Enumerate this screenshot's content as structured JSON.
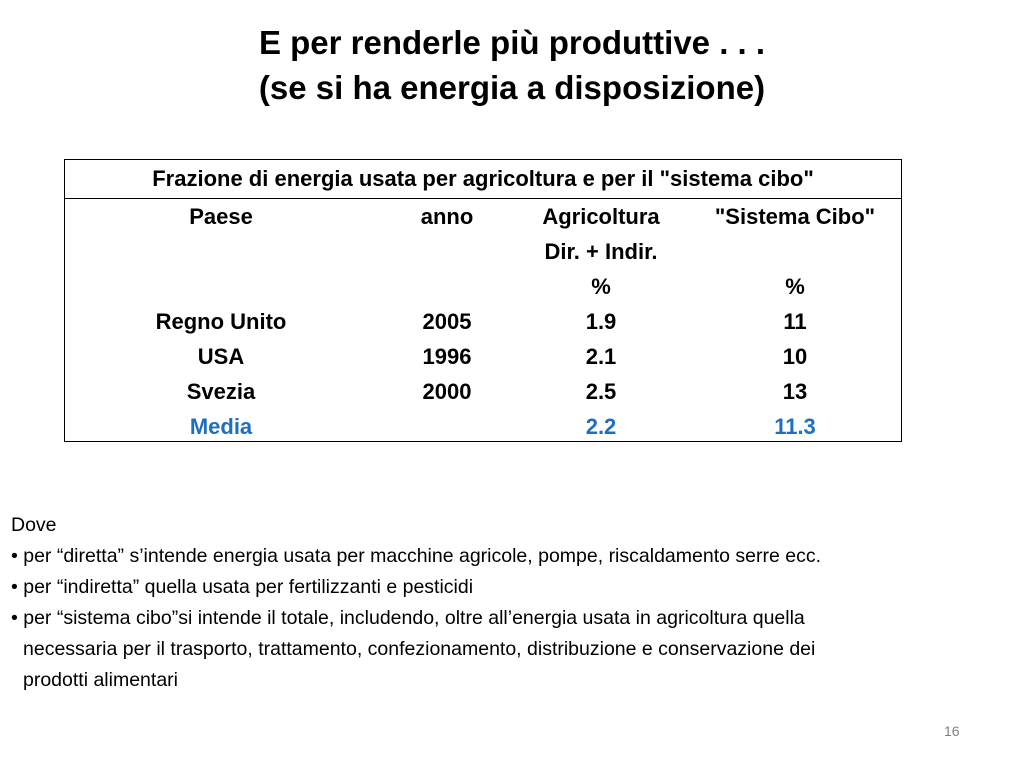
{
  "title": {
    "line1": "E per renderle più produttive . . .",
    "line2": "(se si ha energia a disposizione)"
  },
  "table": {
    "caption": "Frazione di energia usata per agricoltura e per il \"sistema cibo\"",
    "headers": {
      "paese": "Paese",
      "anno": "anno",
      "agricoltura": "Agricoltura",
      "agricoltura_sub": "Dir. + Indir.",
      "sistema_cibo": "\"Sistema Cibo\"",
      "unit_agricoltura": "%",
      "unit_sistema_cibo": "%"
    },
    "rows": [
      {
        "paese": "Regno Unito",
        "anno": "2005",
        "agricoltura": "1.9",
        "sistema_cibo": "11"
      },
      {
        "paese": "USA",
        "anno": "1996",
        "agricoltura": "2.1",
        "sistema_cibo": "10"
      },
      {
        "paese": "Svezia",
        "anno": "2000",
        "agricoltura": "2.5",
        "sistema_cibo": "13"
      }
    ],
    "media": {
      "paese": "Media",
      "anno": "",
      "agricoltura": "2.2",
      "sistema_cibo": "11.3"
    },
    "media_color": "#1f6fc1"
  },
  "notes": {
    "intro": "Dove",
    "bullets": [
      "• per “diretta” s’intende energia usata per macchine agricole, pompe, riscaldamento serre ecc.",
      "• per “indiretta” quella usata per fertilizzanti e pesticidi",
      "• per “sistema cibo”si intende il totale, includendo, oltre all’energia usata in agricoltura quella"
    ],
    "continuation": [
      "necessaria per il trasporto, trattamento, confezionamento, distribuzione e conservazione dei",
      "prodotti alimentari"
    ]
  },
  "page_number": "16"
}
